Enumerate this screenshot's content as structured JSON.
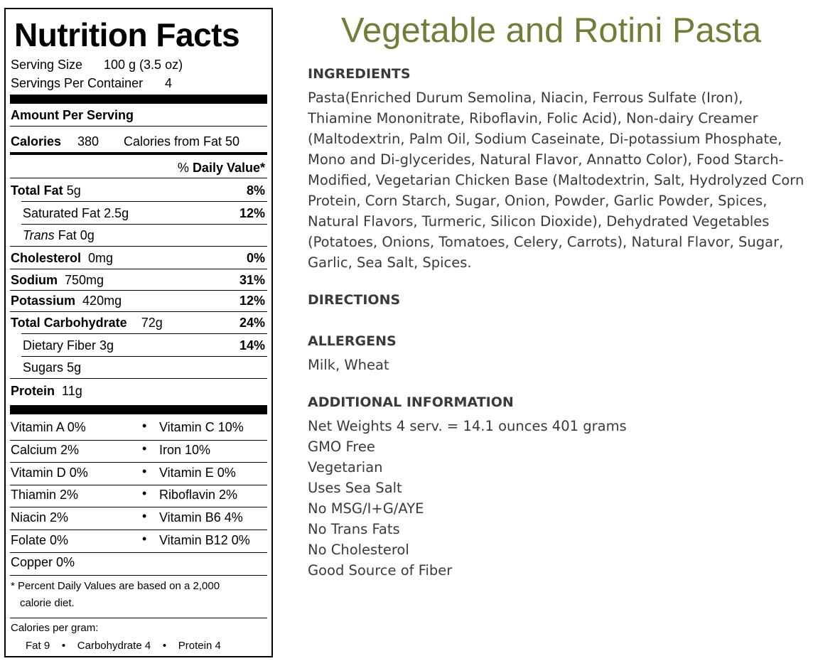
{
  "nutrition": {
    "title": "Nutrition Facts",
    "serving_size_label": "Serving Size",
    "serving_size_value": "100  g  (3.5 oz)",
    "servings_per_container_label": "Servings Per Container",
    "servings_per_container_value": "4",
    "amount_per_serving": "Amount Per Serving",
    "calories_label": "Calories",
    "calories_value": "380",
    "calories_from_fat": "Calories from Fat  50",
    "daily_value_header_pct": "% ",
    "daily_value_header": "Daily Value*",
    "nutrients": [
      {
        "label": "Total Fat",
        "amount": "5g",
        "dv": "8%"
      },
      {
        "label": "Saturated Fat",
        "amount": "2.5g",
        "dv": "12%"
      },
      {
        "label": "Trans",
        "amount": "Fat 0g",
        "dv": ""
      },
      {
        "label": "Cholesterol",
        "amount": "0mg",
        "dv": "0%"
      },
      {
        "label": "Sodium",
        "amount": "750mg",
        "dv": "31%"
      },
      {
        "label": "Potassium",
        "amount": "420mg",
        "dv": "12%"
      },
      {
        "label": "Total Carbohydrate",
        "amount": "72g",
        "dv": "24%"
      },
      {
        "label": "Dietary Fiber",
        "amount": "3g",
        "dv": "14%"
      },
      {
        "label": "Sugars",
        "amount": "5g",
        "dv": ""
      },
      {
        "label": "Protein",
        "amount": "11g",
        "dv": ""
      }
    ],
    "vitamins": [
      {
        "left": "Vitamin A  0%",
        "right": "Vitamin C  10%"
      },
      {
        "left": "Calcium  2%",
        "right": "Iron  10%"
      },
      {
        "left": "Vitamin D  0%",
        "right": "Vitamin E  0%"
      },
      {
        "left": "Thiamin  2%",
        "right": "Riboflavin  2%"
      },
      {
        "left": "Niacin  2%",
        "right": "Vitamin B6  4%"
      },
      {
        "left": "Folate  0%",
        "right": "Vitamin B12  0%"
      },
      {
        "left": "Copper  0%",
        "right": ""
      }
    ],
    "bullet": "•",
    "footnote_line1": "* Percent Daily Values are based on a 2,000",
    "footnote_line2": "calorie diet.",
    "calories_per_gram_label": "Calories per gram:",
    "calories_per_gram": "Fat 9    •    Carbohydrate 4    •    Protein 4"
  },
  "product": {
    "title": "Vegetable and Rotini Pasta",
    "ingredients_heading": "INGREDIENTS",
    "ingredients_text": "Pasta(Enriched Durum Semolina, Niacin, Ferrous Sulfate (Iron), Thiamine Mononitrate, Riboflavin, Folic Acid), Non-dairy Creamer (Maltodextrin, Palm Oil, Sodium Caseinate, Di-potassium Phosphate, Mono and Di-glycerides, Natural Flavor, Annatto Color), Food Starch-Modified, Vegetarian Chicken Base (Maltodextrin, Salt, Hydrolyzed Corn Protein, Corn Starch, Sugar, Onion, Powder, Garlic Powder, Spices, Natural Flavors, Turmeric, Silicon Dioxide), Dehydrated Vegetables (Potatoes, Onions, Tomatoes, Celery, Carrots), Natural Flavor, Sugar, Garlic, Sea Salt, Spices.",
    "directions_heading": "DIRECTIONS",
    "allergens_heading": "ALLERGENS",
    "allergens_text": "Milk, Wheat",
    "additional_heading": "ADDITIONAL INFORMATION",
    "additional_items": [
      "Net Weights 4 serv. = 14.1 ounces 401 grams",
      "GMO Free",
      "Vegetarian",
      "Uses Sea Salt",
      "No MSG/I+G/AYE",
      "No Trans Fats",
      "No Cholesterol",
      "Good Source of Fiber"
    ],
    "title_color": "#6f7f3a",
    "text_color": "#3a3a3a"
  }
}
